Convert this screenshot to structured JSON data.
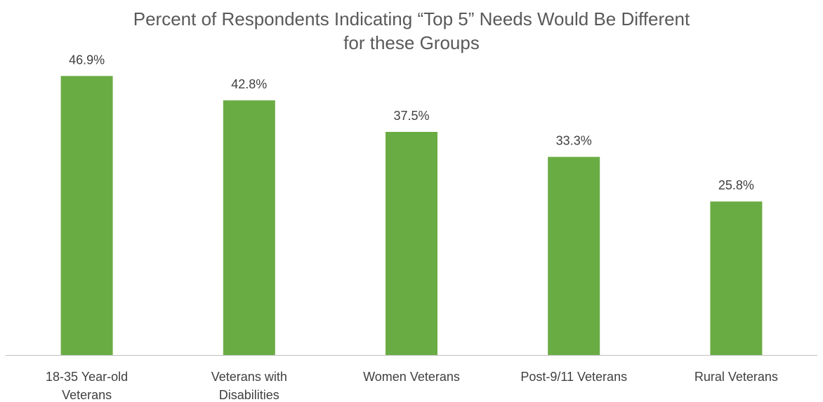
{
  "chart_data": {
    "type": "bar",
    "title_lines": [
      "Percent of Respondents Indicating “Top 5” Needs Would Be Different",
      "for these Groups"
    ],
    "categories": [
      [
        "18-35 Year-old",
        "Veterans"
      ],
      [
        "Veterans with",
        "Disabilities"
      ],
      [
        "Women Veterans"
      ],
      [
        "Post-9/11 Veterans"
      ],
      [
        "Rural Veterans"
      ]
    ],
    "values": [
      46.9,
      42.8,
      37.5,
      33.3,
      25.8
    ],
    "data_labels": [
      "46.9%",
      "42.8%",
      "37.5%",
      "33.3%",
      "25.8%"
    ],
    "unit": "%",
    "ylim": [
      0,
      50
    ],
    "grid": false,
    "legend": "none",
    "bar_color": "#6aac44",
    "axis_color": "#bfbfbf",
    "text_color": "#404040",
    "title_color": "#595959"
  }
}
